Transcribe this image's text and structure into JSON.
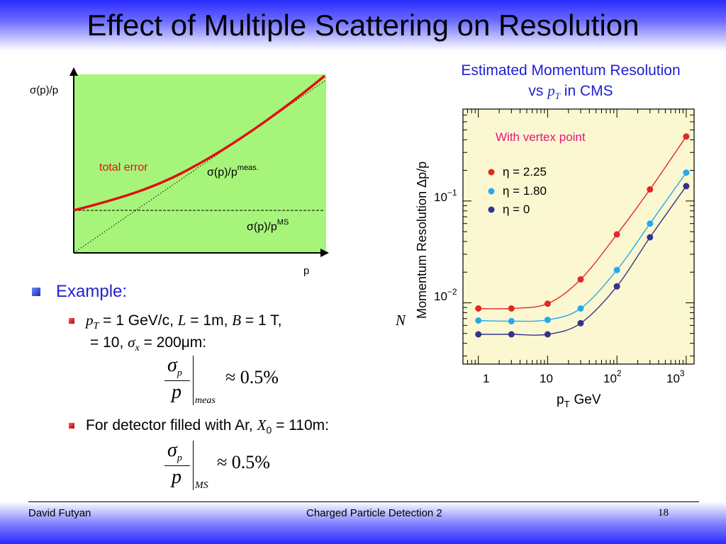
{
  "slide": {
    "title": "Effect of Multiple Scattering on Resolution"
  },
  "left_plot": {
    "y_axis_label": "σ(p)/p",
    "x_axis_label": "p",
    "total_error_label": "total error",
    "meas_label_main": "σ(p)/p",
    "meas_label_sup": "meas.",
    "ms_label_main": "σ(p)/p",
    "ms_label_sup": "MS",
    "colors": {
      "panel": "#a6f57a",
      "curve": "#e01010",
      "label": "#e01010"
    }
  },
  "cms": {
    "title_line1": "Estimated Momentum Resolution",
    "title_vs": "vs",
    "title_pt": "p",
    "title_pt_sub": "T",
    "title_in": "in CMS",
    "annotation": "With vertex point",
    "legend": [
      {
        "label": "η = 2.25",
        "color": "#e02828"
      },
      {
        "label": "η = 1.80",
        "color": "#22aaee"
      },
      {
        "label": "η = 0",
        "color": "#33338f"
      }
    ],
    "y_axis_label": "Momentum Resolution Δp/p",
    "x_axis_label": "p",
    "x_axis_label_sub": "T",
    "x_axis_unit": "GeV",
    "y_tick_labels": [
      {
        "base": "10",
        "exp": "−1"
      },
      {
        "base": "10",
        "exp": "−2"
      }
    ],
    "x_tick_labels": [
      {
        "base": "1",
        "exp": ""
      },
      {
        "base": "10",
        "exp": ""
      },
      {
        "base": "10",
        "exp": "2"
      },
      {
        "base": "10",
        "exp": "3"
      }
    ],
    "colors": {
      "panel": "#fbf7d0"
    }
  },
  "chart_data": {
    "type": "scatter",
    "title": "Estimated Momentum Resolution vs pT in CMS",
    "xlabel": "pT GeV",
    "ylabel": "Momentum Resolution Δp/p",
    "x_scale": "log",
    "y_scale": "log",
    "xlim": [
      0.6,
      1300
    ],
    "ylim": [
      0.0025,
      0.8
    ],
    "x": [
      1,
      3,
      10,
      30,
      100,
      300,
      1000
    ],
    "series": [
      {
        "name": "η = 2.25",
        "color": "#e02828",
        "values": [
          0.0088,
          0.0088,
          0.0098,
          0.017,
          0.047,
          0.13,
          0.43
        ]
      },
      {
        "name": "η = 1.80",
        "color": "#22aaee",
        "values": [
          0.0067,
          0.0066,
          0.0068,
          0.0088,
          0.021,
          0.06,
          0.19
        ]
      },
      {
        "name": "η = 0",
        "color": "#33338f",
        "values": [
          0.0049,
          0.0049,
          0.0049,
          0.0063,
          0.0145,
          0.044,
          0.14
        ]
      }
    ]
  },
  "bullets": {
    "example": "Example:",
    "item1_line1_pT": "p",
    "item1_line1_pT_sub": "T",
    "item1_line1_a": " = 1 GeV/c, ",
    "item1_line1_L": "L",
    "item1_line1_b": " = 1m, ",
    "item1_line1_B": "B",
    "item1_line1_c": " = 1 T,",
    "item1_N": "N",
    "item1_line2_a": "= 10, ",
    "item1_line2_sigma": "σ",
    "item1_line2_sigma_sub": "x",
    "item1_line2_b": " = 200μm:",
    "item2_a": "For detector filled with Ar, ",
    "item2_X": "X",
    "item2_X_sub": "0",
    "item2_b": " = 110m:"
  },
  "equations": {
    "sigma": "σ",
    "sub_p": "p",
    "denominator": "p",
    "meas_subscript": "meas",
    "ms_subscript": "MS",
    "result1": "≈ 0.5%",
    "result2": "≈ 0.5%"
  },
  "footer": {
    "author": "David Futyan",
    "course": "Charged Particle Detection 2",
    "page": "18"
  }
}
